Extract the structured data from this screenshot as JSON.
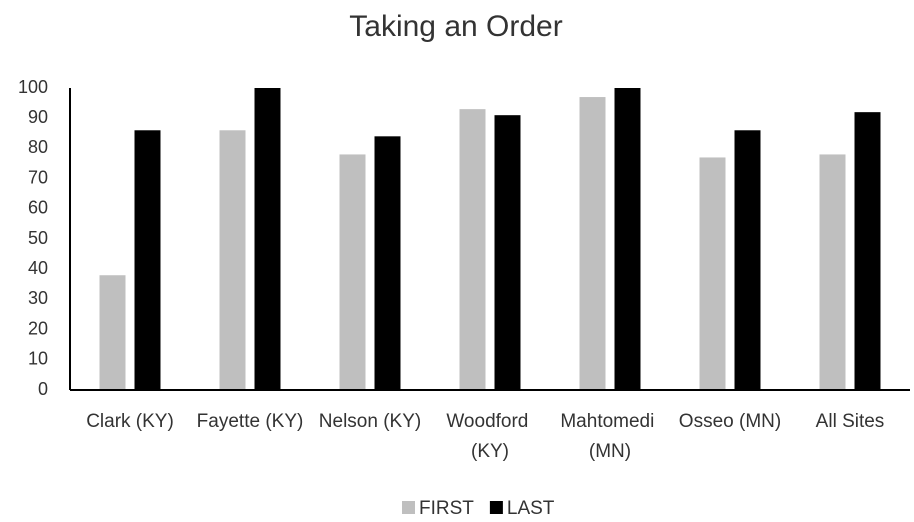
{
  "chart_data": {
    "type": "bar",
    "title": "Taking an Order",
    "categories": [
      "Clark (KY)",
      "Fayette (KY)",
      "Nelson (KY)",
      "Woodford (KY)",
      "Mahtomedi (MN)",
      "Osseo (MN)",
      "All Sites"
    ],
    "series": [
      {
        "name": "FIRST",
        "color": "#bfbfbf",
        "values": [
          38,
          86,
          78,
          93,
          97,
          77,
          78
        ]
      },
      {
        "name": "LAST",
        "color": "#000000",
        "values": [
          86,
          100,
          84,
          91,
          100,
          86,
          92
        ]
      }
    ],
    "ylim": [
      0,
      100
    ],
    "yticks": [
      0,
      10,
      20,
      30,
      40,
      50,
      60,
      70,
      80,
      90,
      100
    ],
    "grid": false,
    "legend": "bottom"
  }
}
